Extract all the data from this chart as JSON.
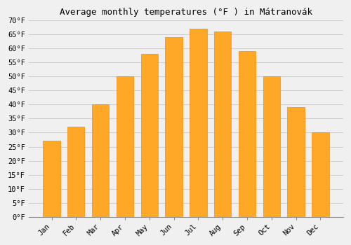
{
  "title": "Average monthly temperatures (°F ) in Mátranovák",
  "months": [
    "Jan",
    "Feb",
    "Mar",
    "Apr",
    "May",
    "Jun",
    "Jul",
    "Aug",
    "Sep",
    "Oct",
    "Nov",
    "Dec"
  ],
  "values": [
    27,
    32,
    40,
    50,
    58,
    64,
    67,
    66,
    59,
    50,
    39,
    30
  ],
  "bar_color_main": "#FFA726",
  "bar_color_edge": "#FFB74D",
  "bar_color_dark": "#FB8C00",
  "background_color": "#f0f0f0",
  "grid_color": "#cccccc",
  "ylim": [
    0,
    70
  ],
  "yticks": [
    0,
    5,
    10,
    15,
    20,
    25,
    30,
    35,
    40,
    45,
    50,
    55,
    60,
    65,
    70
  ],
  "title_fontsize": 9,
  "tick_fontsize": 7.5,
  "figsize": [
    5.0,
    3.5
  ],
  "dpi": 100
}
